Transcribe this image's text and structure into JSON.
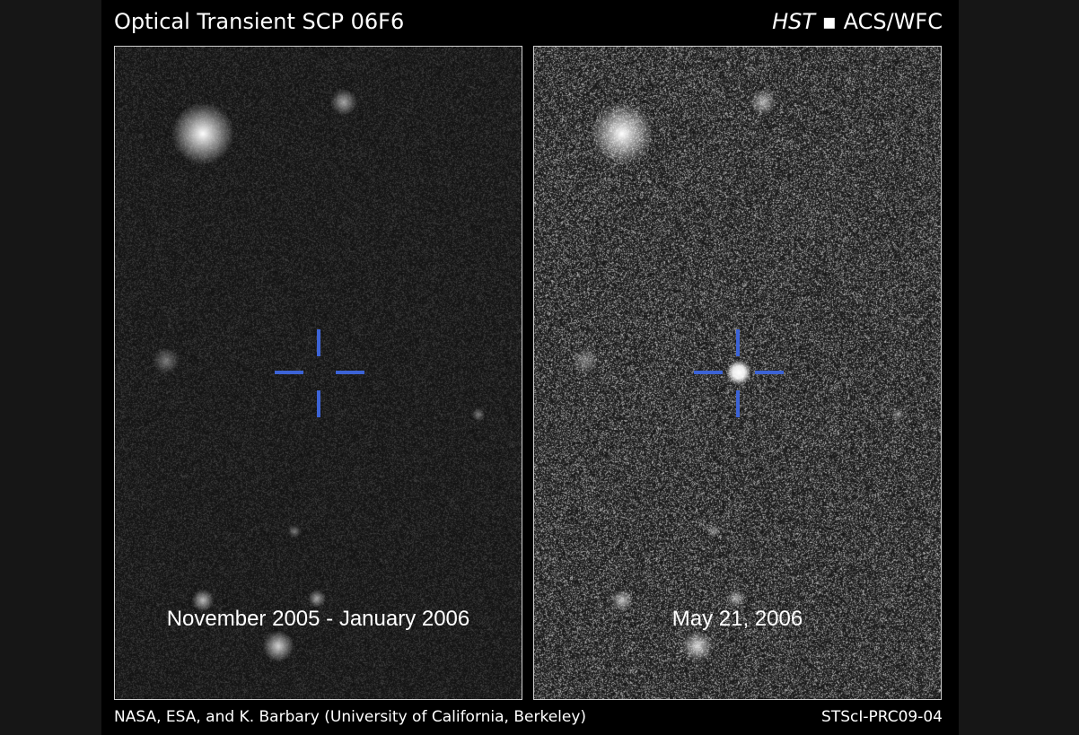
{
  "title": "Optical Transient SCP 06F6",
  "instrument": {
    "telescope": "HST",
    "separator": "▪",
    "camera": "ACS/WFC"
  },
  "panels": [
    {
      "caption": "November 2005 - January 2006",
      "transient_visible": false
    },
    {
      "caption": "May 21, 2006",
      "transient_visible": true
    }
  ],
  "marker_color": "#3c63d6",
  "credit": "NASA, ESA, and K. Barbary (University of California, Berkeley)",
  "release_id": "STScI-PRC09-04"
}
